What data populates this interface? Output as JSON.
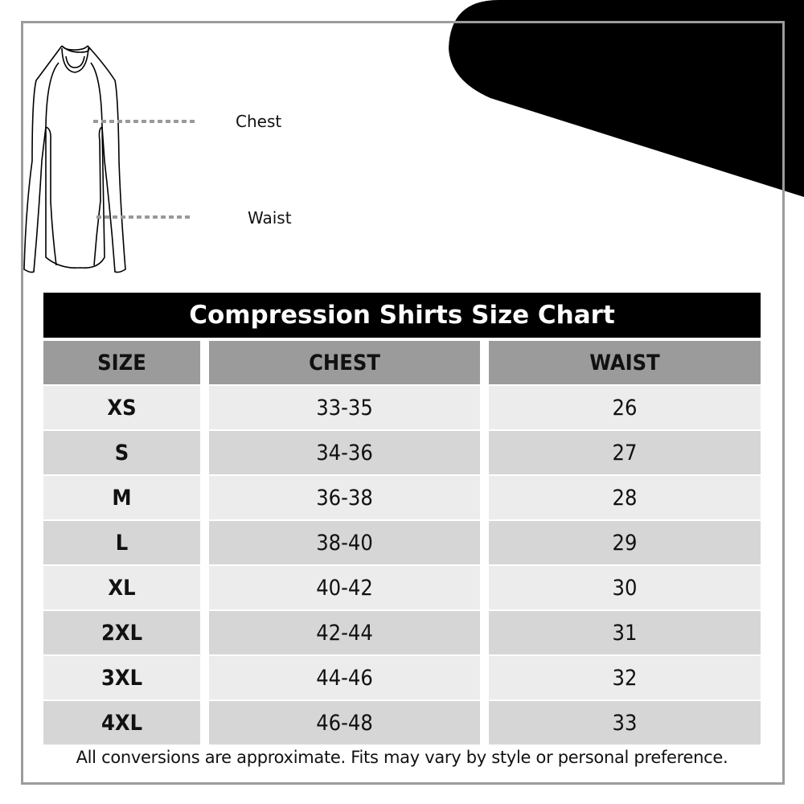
{
  "diagram": {
    "chest_label": "Chest",
    "waist_label": "Waist"
  },
  "table": {
    "title": "Compression Shirts Size Chart",
    "headers": [
      "SIZE",
      "CHEST",
      "WAIST"
    ],
    "rows": [
      [
        "XS",
        "33-35",
        "26"
      ],
      [
        "S",
        "34-36",
        "27"
      ],
      [
        "M",
        "36-38",
        "28"
      ],
      [
        "L",
        "38-40",
        "29"
      ],
      [
        "XL",
        "40-42",
        "30"
      ],
      [
        "2XL",
        "42-44",
        "31"
      ],
      [
        "3XL",
        "44-46",
        "32"
      ],
      [
        "4XL",
        "46-48",
        "33"
      ]
    ],
    "row_colors": [
      "#ececec",
      "#d6d6d6"
    ],
    "header_color": "#9b9b9b"
  },
  "footnote": "All conversions are approximate. Fits may vary by style or personal preference."
}
